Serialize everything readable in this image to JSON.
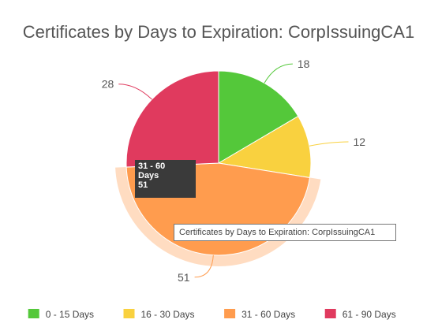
{
  "chart_data": {
    "type": "pie",
    "title": "Certificates by Days to Expiration: CorpIssuingCA1",
    "categories": [
      "0 - 15 Days",
      "16 - 30 Days",
      "31 - 60 Days",
      "61 - 90 Days"
    ],
    "values": [
      18,
      12,
      51,
      28
    ],
    "colors": [
      "#54c83a",
      "#f9d13f",
      "#ff9c4e",
      "#e03a5e"
    ],
    "legend_position": "bottom",
    "hovered_slice": 2
  },
  "tooltips": {
    "slice_tooltip": {
      "category": "31 - 60",
      "unit": "Days",
      "value": "51"
    },
    "title_tooltip": "Certificates by Days to Expiration: CorpIssuingCA1"
  }
}
